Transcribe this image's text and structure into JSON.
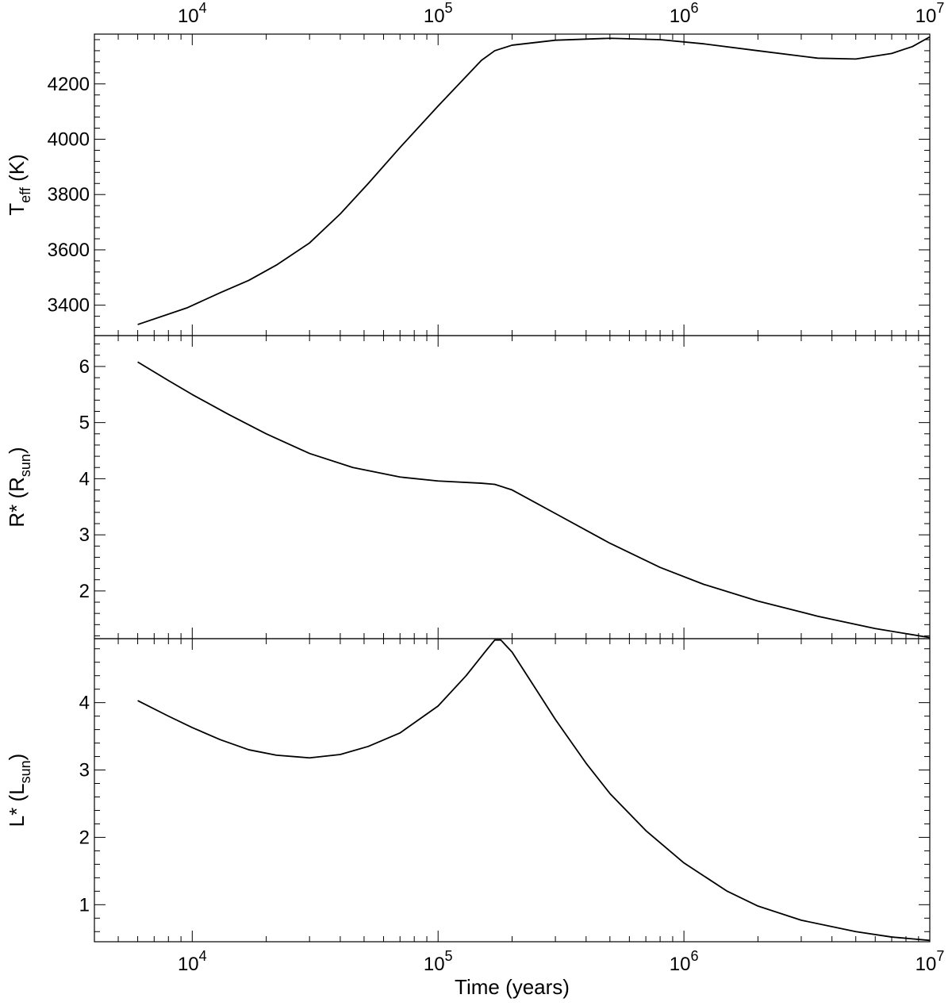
{
  "chart_data": [
    {
      "type": "line",
      "x_scale": "log",
      "xlim": [
        4000,
        10000000
      ],
      "x_ticks": [
        {
          "value": 10000,
          "base": "10",
          "exp": "4"
        },
        {
          "value": 100000,
          "base": "10",
          "exp": "5"
        },
        {
          "value": 1000000,
          "base": "10",
          "exp": "6"
        },
        {
          "value": 10000000,
          "base": "10",
          "exp": "7"
        }
      ],
      "x_tick_labels_position": "top",
      "ylabel": {
        "main": "T",
        "sub": "eff",
        "rest": " (K)"
      },
      "ylim": [
        3290,
        4380
      ],
      "y_ticks": [
        3400,
        3600,
        3800,
        4000,
        4200
      ],
      "y_tick_labels": [
        "3400",
        "3600",
        "3800",
        "4000",
        "4200"
      ],
      "y_minor_step": 40,
      "grid": false,
      "series": [
        {
          "color": "#000000",
          "points": [
            [
              6000,
              3330
            ],
            [
              9500,
              3390
            ],
            [
              13000,
              3445
            ],
            [
              17000,
              3490
            ],
            [
              22000,
              3545
            ],
            [
              30000,
              3625
            ],
            [
              40000,
              3730
            ],
            [
              52000,
              3840
            ],
            [
              70000,
              3970
            ],
            [
              100000,
              4120
            ],
            [
              150000,
              4285
            ],
            [
              170000,
              4320
            ],
            [
              200000,
              4340
            ],
            [
              300000,
              4358
            ],
            [
              500000,
              4365
            ],
            [
              800000,
              4360
            ],
            [
              1200000,
              4345
            ],
            [
              2000000,
              4320
            ],
            [
              3500000,
              4293
            ],
            [
              5000000,
              4290
            ],
            [
              7000000,
              4310
            ],
            [
              8500000,
              4335
            ],
            [
              10000000,
              4370
            ]
          ]
        }
      ]
    },
    {
      "type": "line",
      "x_scale": "log",
      "xlim": [
        4000,
        10000000
      ],
      "ylabel": {
        "main": "R",
        "sub": "sun",
        "prefix": "R* ("
      },
      "ylim": [
        1.15,
        6.55
      ],
      "y_ticks": [
        2,
        3,
        4,
        5,
        6
      ],
      "y_tick_labels": [
        "2",
        "3",
        "4",
        "5",
        "6"
      ],
      "y_minor_step": 0.2,
      "grid": false,
      "series": [
        {
          "color": "#000000",
          "points": [
            [
              6000,
              6.08
            ],
            [
              8000,
              5.75
            ],
            [
              10000,
              5.5
            ],
            [
              14000,
              5.15
            ],
            [
              20000,
              4.8
            ],
            [
              30000,
              4.45
            ],
            [
              45000,
              4.2
            ],
            [
              70000,
              4.03
            ],
            [
              100000,
              3.96
            ],
            [
              150000,
              3.92
            ],
            [
              170000,
              3.9
            ],
            [
              200000,
              3.8
            ],
            [
              300000,
              3.38
            ],
            [
              500000,
              2.85
            ],
            [
              800000,
              2.42
            ],
            [
              1200000,
              2.12
            ],
            [
              2000000,
              1.82
            ],
            [
              3500000,
              1.55
            ],
            [
              6000000,
              1.33
            ],
            [
              10000000,
              1.17
            ]
          ]
        }
      ]
    },
    {
      "type": "line",
      "x_scale": "log",
      "xlim": [
        4000,
        10000000
      ],
      "x_ticks": [
        {
          "value": 10000,
          "base": "10",
          "exp": "4"
        },
        {
          "value": 100000,
          "base": "10",
          "exp": "5"
        },
        {
          "value": 1000000,
          "base": "10",
          "exp": "6"
        },
        {
          "value": 10000000,
          "base": "10",
          "exp": "7"
        }
      ],
      "xlabel": "Time (years)",
      "ylabel": {
        "main": "L",
        "sub": "sun",
        "prefix": "L* ("
      },
      "ylim": [
        0.45,
        4.95
      ],
      "y_ticks": [
        1,
        2,
        3,
        4
      ],
      "y_tick_labels": [
        "1",
        "2",
        "3",
        "4"
      ],
      "y_minor_step": 0.2,
      "grid": false,
      "series": [
        {
          "color": "#000000",
          "points": [
            [
              6000,
              4.03
            ],
            [
              8000,
              3.8
            ],
            [
              10000,
              3.63
            ],
            [
              13000,
              3.45
            ],
            [
              17000,
              3.3
            ],
            [
              22000,
              3.22
            ],
            [
              30000,
              3.18
            ],
            [
              40000,
              3.23
            ],
            [
              52000,
              3.35
            ],
            [
              70000,
              3.55
            ],
            [
              100000,
              3.95
            ],
            [
              130000,
              4.4
            ],
            [
              155000,
              4.75
            ],
            [
              170000,
              4.93
            ],
            [
              180000,
              4.93
            ],
            [
              200000,
              4.75
            ],
            [
              250000,
              4.2
            ],
            [
              300000,
              3.75
            ],
            [
              400000,
              3.1
            ],
            [
              500000,
              2.65
            ],
            [
              700000,
              2.1
            ],
            [
              1000000,
              1.62
            ],
            [
              1500000,
              1.2
            ],
            [
              2000000,
              0.98
            ],
            [
              3000000,
              0.77
            ],
            [
              5000000,
              0.6
            ],
            [
              7000000,
              0.52
            ],
            [
              10000000,
              0.47
            ]
          ]
        }
      ]
    }
  ]
}
